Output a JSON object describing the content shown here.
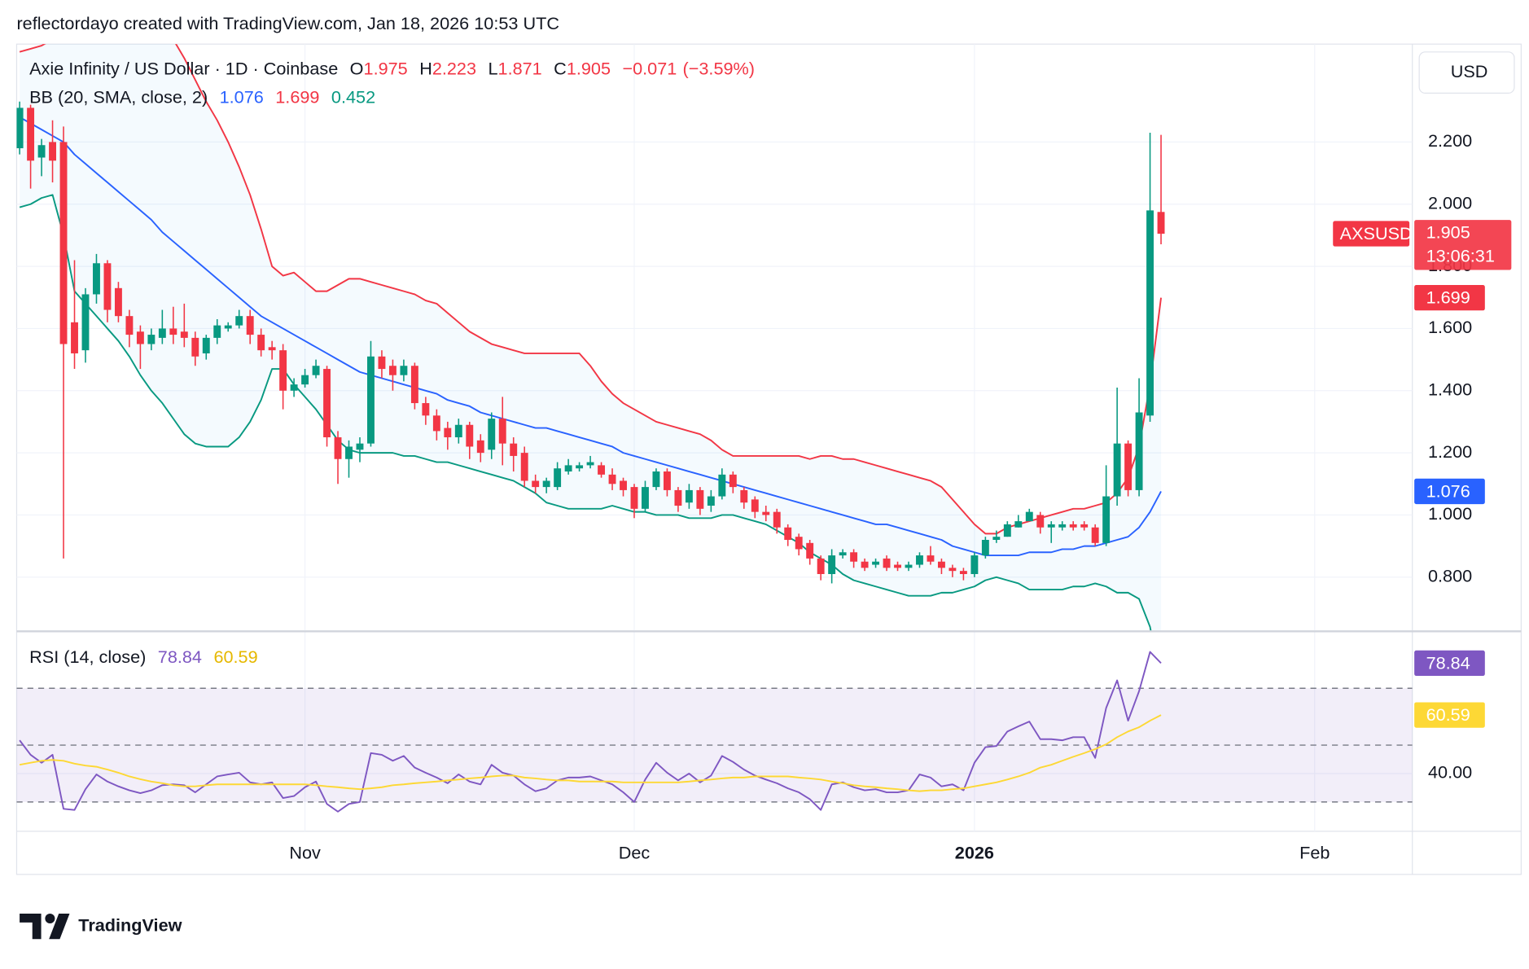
{
  "attribution": "reflectordayo created with TradingView.com, Jan 18, 2026 10:53 UTC",
  "brand": "TradingView",
  "chart_data": {
    "type": "candlestick",
    "title": "Axie Infinity / US Dollar · 1D · Coinbase",
    "symbol": "AXSUSD",
    "currency": "USD",
    "countdown": "13:06:31",
    "ohlc_labels": [
      "O",
      "H",
      "L",
      "C"
    ],
    "change": {
      "value": -0.071,
      "label": "−0.071"
    },
    "change_pct": {
      "value": -3.59,
      "label": "(−3.59%)"
    },
    "up_color": "#089981",
    "down_color": "#f23645",
    "candles": {
      "open": [
        2.18,
        2.31,
        2.15,
        2.2,
        2.2,
        1.62,
        1.53,
        1.71,
        1.81,
        1.73,
        1.64,
        1.59,
        1.55,
        1.57,
        1.6,
        1.59,
        1.57,
        1.52,
        1.57,
        1.6,
        1.61,
        1.64,
        1.58,
        1.54,
        1.53,
        1.4,
        1.42,
        1.45,
        1.47,
        1.25,
        1.18,
        1.21,
        1.23,
        1.51,
        1.48,
        1.45,
        1.48,
        1.36,
        1.32,
        1.28,
        1.25,
        1.29,
        1.24,
        1.21,
        1.31,
        1.23,
        1.2,
        1.11,
        1.09,
        1.09,
        1.14,
        1.15,
        1.16,
        1.16,
        1.13,
        1.11,
        1.09,
        1.02,
        1.09,
        1.14,
        1.08,
        1.04,
        1.08,
        1.03,
        1.06,
        1.13,
        1.08,
        1.05,
        1.01,
        1.01,
        0.96,
        0.93,
        0.91,
        0.86,
        0.81,
        0.87,
        0.88,
        0.85,
        0.84,
        0.86,
        0.84,
        0.83,
        0.84,
        0.87,
        0.85,
        0.83,
        0.82,
        0.81,
        0.87,
        0.92,
        0.93,
        0.96,
        0.98,
        1.0,
        0.96,
        0.96,
        0.97,
        0.97,
        0.96,
        0.91,
        1.06,
        1.23,
        1.08,
        1.32,
        1.975
      ],
      "high": [
        2.33,
        2.32,
        2.21,
        2.27,
        2.25,
        1.82,
        1.73,
        1.84,
        1.82,
        1.75,
        1.66,
        1.61,
        1.6,
        1.66,
        1.67,
        1.68,
        1.59,
        1.58,
        1.63,
        1.62,
        1.66,
        1.66,
        1.6,
        1.56,
        1.55,
        1.44,
        1.47,
        1.5,
        1.48,
        1.27,
        1.24,
        1.25,
        1.56,
        1.53,
        1.5,
        1.5,
        1.49,
        1.38,
        1.34,
        1.3,
        1.31,
        1.3,
        1.26,
        1.33,
        1.38,
        1.25,
        1.22,
        1.13,
        1.12,
        1.17,
        1.18,
        1.17,
        1.19,
        1.17,
        1.15,
        1.12,
        1.1,
        1.11,
        1.15,
        1.15,
        1.09,
        1.1,
        1.09,
        1.08,
        1.15,
        1.14,
        1.09,
        1.06,
        1.03,
        1.02,
        0.97,
        0.94,
        0.92,
        0.87,
        0.89,
        0.89,
        0.89,
        0.86,
        0.86,
        0.87,
        0.85,
        0.85,
        0.88,
        0.9,
        0.86,
        0.84,
        0.83,
        0.88,
        0.93,
        0.95,
        0.98,
        1.0,
        1.02,
        1.01,
        0.98,
        0.98,
        0.98,
        0.98,
        0.97,
        1.16,
        1.41,
        1.24,
        1.44,
        2.23,
        2.223
      ],
      "low": [
        2.16,
        2.05,
        2.09,
        2.07,
        0.86,
        1.47,
        1.49,
        1.68,
        1.62,
        1.62,
        1.54,
        1.47,
        1.53,
        1.55,
        1.55,
        1.54,
        1.48,
        1.5,
        1.55,
        1.59,
        1.6,
        1.55,
        1.51,
        1.5,
        1.34,
        1.38,
        1.41,
        1.44,
        1.22,
        1.1,
        1.12,
        1.17,
        1.22,
        1.44,
        1.4,
        1.43,
        1.34,
        1.29,
        1.24,
        1.21,
        1.23,
        1.18,
        1.17,
        1.18,
        1.16,
        1.14,
        1.09,
        1.07,
        1.07,
        1.08,
        1.13,
        1.14,
        1.15,
        1.12,
        1.08,
        1.06,
        0.99,
        1.01,
        1.08,
        1.06,
        1.01,
        1.02,
        1.0,
        1.01,
        1.05,
        1.07,
        1.02,
        0.99,
        0.98,
        0.94,
        0.9,
        0.87,
        0.84,
        0.79,
        0.78,
        0.86,
        0.83,
        0.82,
        0.83,
        0.82,
        0.82,
        0.82,
        0.83,
        0.84,
        0.81,
        0.8,
        0.79,
        0.8,
        0.86,
        0.91,
        0.93,
        0.96,
        0.98,
        0.94,
        0.91,
        0.95,
        0.95,
        0.95,
        0.9,
        0.9,
        1.03,
        1.06,
        1.06,
        1.3,
        1.871
      ],
      "close": [
        2.31,
        2.14,
        2.19,
        2.14,
        1.55,
        1.52,
        1.71,
        1.81,
        1.66,
        1.64,
        1.58,
        1.55,
        1.58,
        1.6,
        1.58,
        1.57,
        1.51,
        1.57,
        1.61,
        1.61,
        1.64,
        1.58,
        1.53,
        1.53,
        1.4,
        1.42,
        1.45,
        1.48,
        1.25,
        1.18,
        1.22,
        1.23,
        1.51,
        1.47,
        1.45,
        1.48,
        1.36,
        1.32,
        1.27,
        1.25,
        1.29,
        1.22,
        1.2,
        1.31,
        1.23,
        1.19,
        1.11,
        1.09,
        1.11,
        1.15,
        1.16,
        1.16,
        1.17,
        1.13,
        1.1,
        1.08,
        1.02,
        1.09,
        1.14,
        1.08,
        1.03,
        1.08,
        1.02,
        1.06,
        1.13,
        1.09,
        1.04,
        1.01,
        1.0,
        0.96,
        0.92,
        0.89,
        0.86,
        0.81,
        0.87,
        0.88,
        0.85,
        0.83,
        0.85,
        0.83,
        0.83,
        0.84,
        0.87,
        0.85,
        0.83,
        0.82,
        0.81,
        0.87,
        0.92,
        0.93,
        0.97,
        0.98,
        1.01,
        0.96,
        0.97,
        0.97,
        0.96,
        0.96,
        0.91,
        1.06,
        1.23,
        1.08,
        1.33,
        1.98,
        1.905
      ]
    },
    "bollinger": {
      "name": "BB (20, SMA, close, 2)",
      "fill": "#2196f3",
      "series": [
        {
          "color": "#2962ff",
          "values": [
            2.28,
            2.26,
            2.24,
            2.22,
            2.2,
            2.16,
            2.13,
            2.1,
            2.07,
            2.04,
            2.01,
            1.98,
            1.95,
            1.91,
            1.88,
            1.85,
            1.82,
            1.79,
            1.76,
            1.73,
            1.7,
            1.67,
            1.64,
            1.62,
            1.6,
            1.58,
            1.56,
            1.54,
            1.52,
            1.5,
            1.48,
            1.46,
            1.45,
            1.44,
            1.43,
            1.42,
            1.41,
            1.4,
            1.39,
            1.37,
            1.36,
            1.35,
            1.33,
            1.32,
            1.31,
            1.3,
            1.29,
            1.28,
            1.28,
            1.27,
            1.26,
            1.25,
            1.24,
            1.23,
            1.22,
            1.2,
            1.19,
            1.18,
            1.17,
            1.16,
            1.15,
            1.14,
            1.13,
            1.12,
            1.11,
            1.1,
            1.09,
            1.08,
            1.07,
            1.06,
            1.05,
            1.04,
            1.03,
            1.02,
            1.01,
            1.0,
            0.99,
            0.98,
            0.97,
            0.97,
            0.96,
            0.95,
            0.94,
            0.93,
            0.92,
            0.9,
            0.89,
            0.88,
            0.87,
            0.87,
            0.87,
            0.87,
            0.88,
            0.88,
            0.88,
            0.89,
            0.89,
            0.9,
            0.9,
            0.91,
            0.92,
            0.93,
            0.96,
            1.01,
            1.076
          ]
        },
        {
          "color": "#f23645",
          "values": [
            2.49,
            2.5,
            2.51,
            2.53,
            2.58,
            2.65,
            2.7,
            2.72,
            2.73,
            2.73,
            2.7,
            2.66,
            2.62,
            2.58,
            2.53,
            2.47,
            2.4,
            2.33,
            2.27,
            2.2,
            2.12,
            2.03,
            1.92,
            1.8,
            1.77,
            1.78,
            1.75,
            1.72,
            1.72,
            1.74,
            1.76,
            1.76,
            1.75,
            1.74,
            1.73,
            1.72,
            1.71,
            1.69,
            1.68,
            1.65,
            1.62,
            1.59,
            1.57,
            1.55,
            1.54,
            1.53,
            1.52,
            1.52,
            1.52,
            1.52,
            1.52,
            1.52,
            1.48,
            1.43,
            1.39,
            1.36,
            1.34,
            1.32,
            1.3,
            1.29,
            1.28,
            1.27,
            1.26,
            1.24,
            1.21,
            1.19,
            1.19,
            1.19,
            1.19,
            1.19,
            1.19,
            1.19,
            1.18,
            1.19,
            1.19,
            1.18,
            1.18,
            1.17,
            1.16,
            1.15,
            1.14,
            1.13,
            1.12,
            1.11,
            1.09,
            1.05,
            1.01,
            0.97,
            0.94,
            0.94,
            0.96,
            0.97,
            0.98,
            0.99,
            1.0,
            1.01,
            1.02,
            1.02,
            1.03,
            1.04,
            1.07,
            1.12,
            1.22,
            1.42,
            1.699
          ]
        },
        {
          "color": "#089981",
          "values": [
            1.99,
            2.0,
            2.02,
            2.03,
            1.9,
            1.72,
            1.68,
            1.64,
            1.6,
            1.56,
            1.51,
            1.45,
            1.4,
            1.36,
            1.31,
            1.26,
            1.23,
            1.22,
            1.22,
            1.22,
            1.25,
            1.3,
            1.37,
            1.47,
            1.47,
            1.42,
            1.38,
            1.34,
            1.29,
            1.24,
            1.21,
            1.2,
            1.2,
            1.2,
            1.2,
            1.19,
            1.19,
            1.18,
            1.17,
            1.17,
            1.16,
            1.15,
            1.14,
            1.13,
            1.12,
            1.11,
            1.09,
            1.07,
            1.04,
            1.03,
            1.02,
            1.02,
            1.02,
            1.02,
            1.03,
            1.02,
            1.01,
            1.01,
            1.0,
            1.0,
            1.0,
            0.99,
            0.99,
            0.99,
            1.0,
            1.0,
            0.99,
            0.98,
            0.97,
            0.95,
            0.93,
            0.91,
            0.88,
            0.86,
            0.84,
            0.81,
            0.79,
            0.78,
            0.77,
            0.76,
            0.75,
            0.74,
            0.74,
            0.74,
            0.75,
            0.75,
            0.76,
            0.77,
            0.79,
            0.8,
            0.79,
            0.78,
            0.76,
            0.76,
            0.76,
            0.76,
            0.77,
            0.77,
            0.78,
            0.77,
            0.75,
            0.75,
            0.73,
            0.64,
            0.452
          ]
        }
      ]
    },
    "ylim": [
      0.629,
      2.515
    ],
    "yticks": [
      {
        "value": 2.2,
        "label": "2.200"
      },
      {
        "value": 2.0,
        "label": "2.000"
      },
      {
        "value": 1.8,
        "label": "1.800"
      },
      {
        "value": 1.6,
        "label": "1.600"
      },
      {
        "value": 1.4,
        "label": "1.400"
      },
      {
        "value": 1.2,
        "label": "1.200"
      },
      {
        "value": 1.0,
        "label": "1.000"
      },
      {
        "value": 0.8,
        "label": "0.800"
      }
    ],
    "xlim": [
      -0.27,
      126.9
    ],
    "xticks": [
      {
        "value": 26,
        "label": "Nov"
      },
      {
        "value": 56,
        "label": "Dec"
      },
      {
        "value": 87,
        "label": "2026"
      },
      {
        "value": 118,
        "label": "Feb"
      }
    ],
    "grid": true,
    "rsi": {
      "name": "RSI (14, close)",
      "ylim": [
        19.7,
        89.7
      ],
      "yticks": [
        {
          "value": 40,
          "label": "40.00"
        }
      ],
      "levels": [
        70,
        50,
        30
      ],
      "band_color": "#7e57c2",
      "series": [
        {
          "color": "#7e57c2",
          "values": [
            51.7,
            46.6,
            43.8,
            46.6,
            27.6,
            27.2,
            34.5,
            39.7,
            37.2,
            35.5,
            34.1,
            33.1,
            34.1,
            35.9,
            36.2,
            35.9,
            33.4,
            36.2,
            39.0,
            39.7,
            40.3,
            36.9,
            36.2,
            36.9,
            31.4,
            32.1,
            35.2,
            37.2,
            29.3,
            26.6,
            29.3,
            30.0,
            47.2,
            46.6,
            44.5,
            46.2,
            42.1,
            40.3,
            38.6,
            36.6,
            39.7,
            37.2,
            36.2,
            43.1,
            40.3,
            39.3,
            36.2,
            33.8,
            34.8,
            37.6,
            38.6,
            38.6,
            39.0,
            37.6,
            36.2,
            33.4,
            30.0,
            37.9,
            43.8,
            40.3,
            37.6,
            40.0,
            36.9,
            39.3,
            46.2,
            44.1,
            41.4,
            39.3,
            37.9,
            36.6,
            34.8,
            33.4,
            31.0,
            27.2,
            36.2,
            36.9,
            35.2,
            34.1,
            34.5,
            33.4,
            33.4,
            34.1,
            39.7,
            38.6,
            35.5,
            36.2,
            34.1,
            43.8,
            49.3,
            49.7,
            54.8,
            56.6,
            58.3,
            52.1,
            52.1,
            51.7,
            52.8,
            52.8,
            45.5,
            63.1,
            72.8,
            58.6,
            69.0,
            82.8,
            78.84
          ]
        },
        {
          "color": "#fdd835",
          "values": [
            43.1,
            43.8,
            44.5,
            44.8,
            44.5,
            43.5,
            42.8,
            42.4,
            41.4,
            40.3,
            39.0,
            38.0,
            37.2,
            36.6,
            35.9,
            35.5,
            35.5,
            35.9,
            36.2,
            36.2,
            36.2,
            36.2,
            36.2,
            36.2,
            36.2,
            36.2,
            36.2,
            35.9,
            35.5,
            35.2,
            34.8,
            34.5,
            34.8,
            35.2,
            35.9,
            36.2,
            36.6,
            36.9,
            37.2,
            37.6,
            37.9,
            38.3,
            38.6,
            39.0,
            39.3,
            39.3,
            38.6,
            38.3,
            37.9,
            37.6,
            37.6,
            37.2,
            37.2,
            37.2,
            37.2,
            36.9,
            36.9,
            36.9,
            36.9,
            36.9,
            36.9,
            37.2,
            37.6,
            37.9,
            38.3,
            38.6,
            38.6,
            39.0,
            39.0,
            39.0,
            39.0,
            38.6,
            38.3,
            37.9,
            37.2,
            36.6,
            35.9,
            35.5,
            35.2,
            34.8,
            34.5,
            34.1,
            33.8,
            34.1,
            34.1,
            34.5,
            34.8,
            35.5,
            36.2,
            36.9,
            37.9,
            39.0,
            40.3,
            42.1,
            43.1,
            44.5,
            45.9,
            47.2,
            48.6,
            50.3,
            52.8,
            54.8,
            56.3,
            58.6,
            60.59
          ]
        }
      ]
    }
  }
}
